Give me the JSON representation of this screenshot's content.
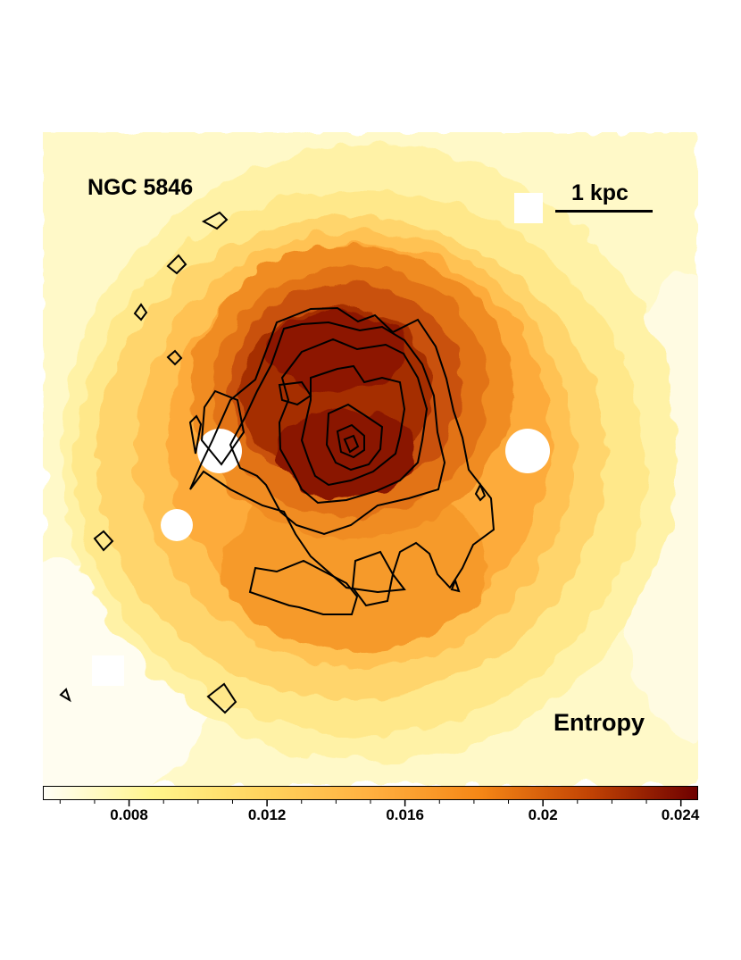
{
  "labels": {
    "object": "NGC 5846",
    "scale": "1 kpc",
    "quantity": "Entropy"
  },
  "colorbar": {
    "min": 0.0055,
    "max": 0.0245,
    "colors": [
      "#fffef6",
      "#fff58c",
      "#ffd45e",
      "#ffb040",
      "#f58716",
      "#c24404",
      "#6e0000"
    ],
    "tick_labels": [
      {
        "text": "0.008",
        "value": 0.008
      },
      {
        "text": "0.012",
        "value": 0.012
      },
      {
        "text": "0.016",
        "value": 0.016
      },
      {
        "text": "0.02",
        "value": 0.02
      },
      {
        "text": "0.024",
        "value": 0.024
      }
    ]
  }
}
